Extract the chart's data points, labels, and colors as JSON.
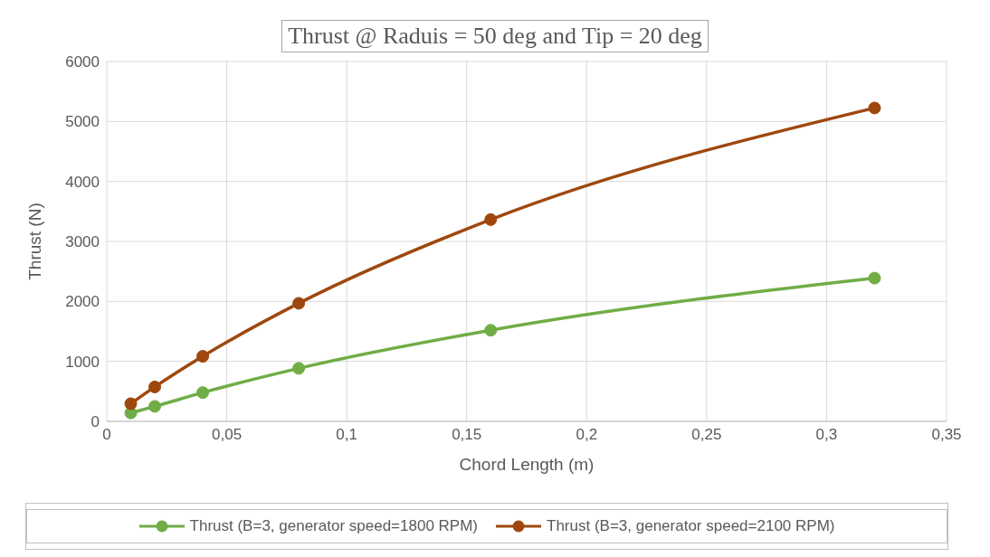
{
  "chart_data": {
    "type": "line",
    "title": "Thrust @ Raduis = 50 deg and Tip = 20 deg",
    "xlabel": "Chord Length (m)",
    "ylabel": "Thrust (N)",
    "x": [
      0.01,
      0.02,
      0.04,
      0.08,
      0.16,
      0.32
    ],
    "series": [
      {
        "name": "Thrust  (B=3, generator speed=1800 RPM)",
        "color": "#70ad47",
        "values": [
          140,
          250,
          480,
          884,
          1519,
          2388
        ]
      },
      {
        "name": "Thrust  (B=3, generator speed=2100 RPM)",
        "color": "#9e480e",
        "values": [
          295,
          574,
          1085,
          1969,
          3364,
          5225
        ]
      }
    ],
    "xlim": [
      0,
      0.35
    ],
    "xticks": [
      0,
      {
        "value": 0.05,
        "label": "0,05"
      },
      {
        "value": 0.1,
        "label": "0,1"
      },
      {
        "value": 0.15,
        "label": "0,15"
      },
      {
        "value": 0.2,
        "label": "0,2"
      },
      {
        "value": 0.25,
        "label": "0,25"
      },
      {
        "value": 0.3,
        "label": "0,3"
      },
      {
        "value": 0.35,
        "label": "0,35"
      }
    ],
    "ylim": [
      0,
      6000
    ],
    "yticks": [
      0,
      1000,
      2000,
      3000,
      4000,
      5000,
      6000
    ],
    "grid": true,
    "legend": "bottom",
    "marker": "circle",
    "line_style": "solid"
  }
}
